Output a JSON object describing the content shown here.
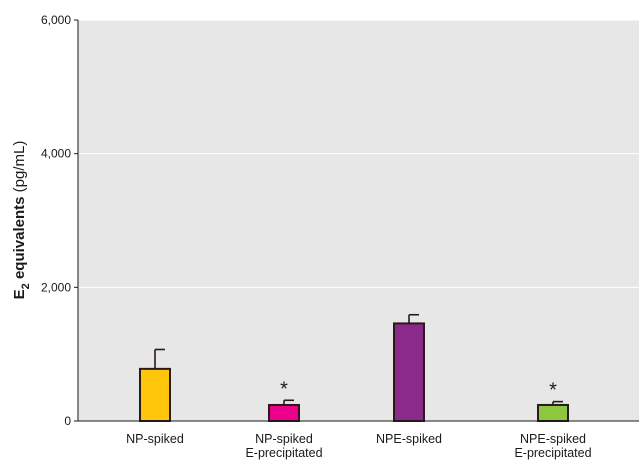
{
  "chart_data": {
    "type": "bar",
    "categories": [
      [
        "NP-spiked"
      ],
      [
        "NP-spiked",
        "E-precipitated"
      ],
      [
        "NPE-spiked"
      ],
      [
        "NPE-spiked",
        "E-precipitated"
      ]
    ],
    "values": [
      780,
      240,
      1460,
      240
    ],
    "error_upper": [
      1070,
      310,
      1590,
      290
    ],
    "annotations": [
      "",
      "*",
      "",
      "*"
    ],
    "colors": [
      "#ffc60b",
      "#ec008c",
      "#8c2a8c",
      "#8dc63f"
    ],
    "edge_color": "#2b1a1a",
    "plot_background": "#e6e7e6",
    "gridline_color": "#ffffff",
    "ylim": [
      0,
      6000
    ],
    "yticks": [
      0,
      2000,
      4000,
      6000
    ],
    "ytick_labels": [
      "0",
      "2,000",
      "4,000",
      "6,000"
    ],
    "ylabel": {
      "main": "E",
      "subscript": "2",
      "bold_rest": " equivalents",
      "unit": " (pg/mL)"
    },
    "xlabel": "",
    "title": "",
    "grid": "horizontal"
  }
}
